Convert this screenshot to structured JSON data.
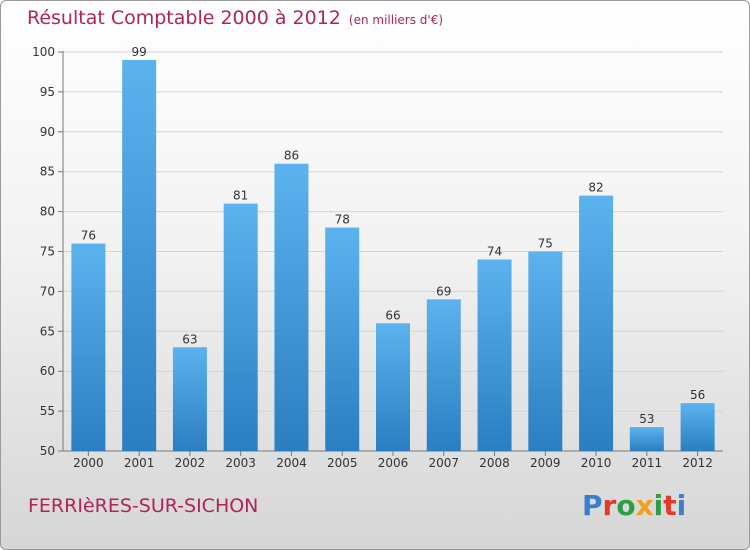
{
  "header": {
    "title": "Résultat Comptable 2000 à 2012",
    "subtitle": "(en milliers d'€)"
  },
  "footer": {
    "commune": "FERRIèRES-SUR-SICHON",
    "logo": "Proxiti"
  },
  "colors": {
    "title": "#b0245a",
    "bar_top": "#5bb3ee",
    "bar_bottom": "#2b7ec1",
    "logo_letters": [
      "#3a7fc9",
      "#e23a2a",
      "#2e9e45",
      "#f0a020",
      "#2e9e45",
      "#e23a2a",
      "#3a7fc9"
    ]
  },
  "chart_data": {
    "type": "bar",
    "categories": [
      "2000",
      "2001",
      "2002",
      "2003",
      "2004",
      "2005",
      "2006",
      "2007",
      "2008",
      "2009",
      "2010",
      "2011",
      "2012"
    ],
    "values": [
      76,
      99,
      63,
      81,
      86,
      78,
      66,
      69,
      74,
      75,
      82,
      53,
      56
    ],
    "title": "Résultat Comptable 2000 à 2012",
    "xlabel": "",
    "ylabel": "",
    "ylim": [
      50,
      100
    ],
    "yticks": [
      50,
      55,
      60,
      65,
      70,
      75,
      80,
      85,
      90,
      95,
      100
    ],
    "grid": true,
    "legend": "none"
  }
}
